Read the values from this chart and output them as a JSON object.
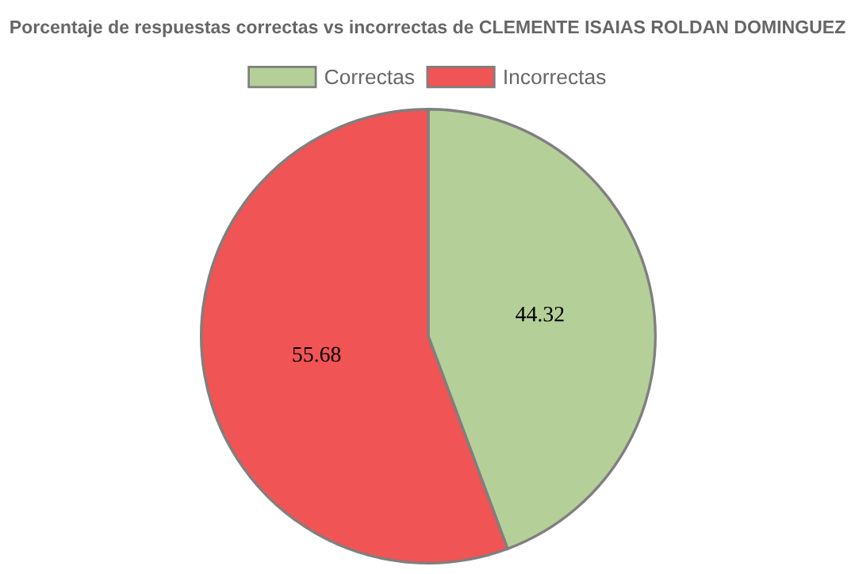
{
  "chart_data": {
    "type": "pie",
    "title": "Porcentaje de respuestas correctas vs incorrectas de CLEMENTE ISAIAS ROLDAN DOMINGUEZ",
    "categories": [
      "Correctas",
      "Incorrectas"
    ],
    "values": [
      44.32,
      55.68
    ],
    "colors": [
      "#b5cf98",
      "#f05454"
    ],
    "data_labels": true,
    "legend": "top"
  }
}
